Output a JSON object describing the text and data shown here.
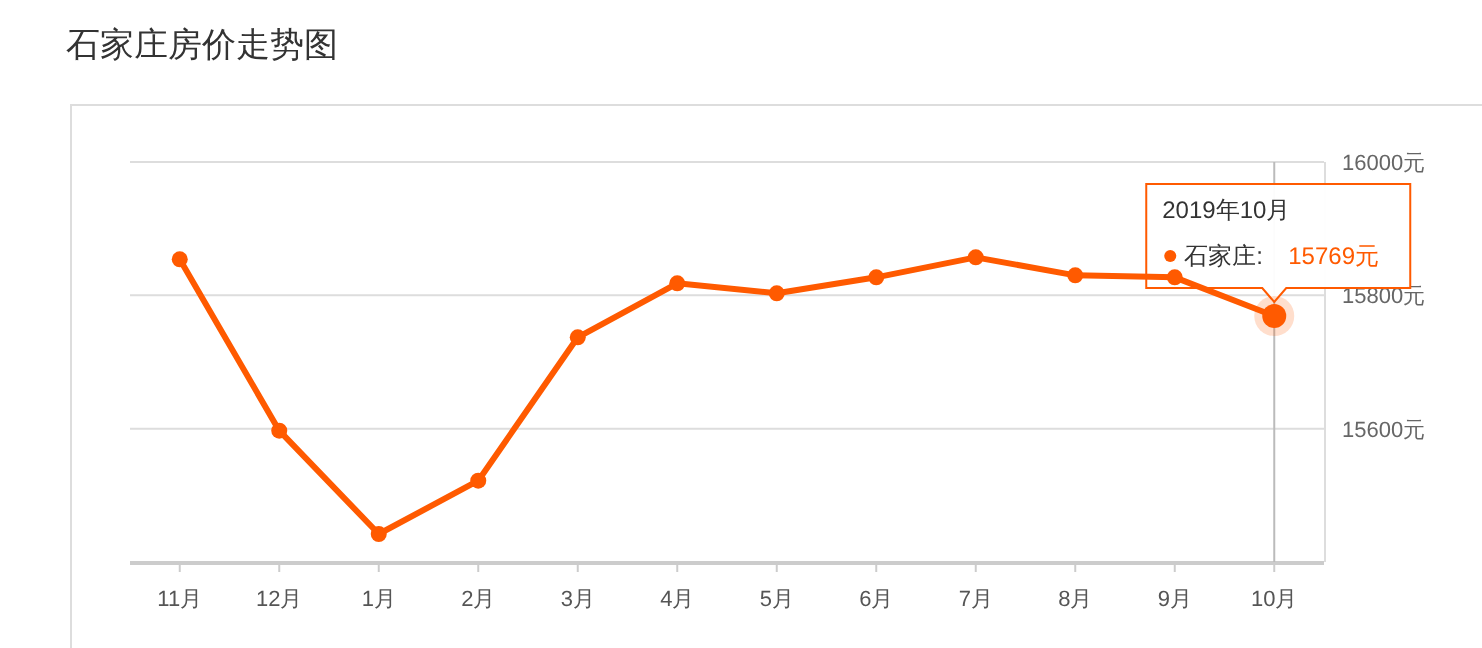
{
  "chart_data": {
    "type": "line",
    "title": "石家庄房价走势图",
    "categories": [
      "11月",
      "12月",
      "1月",
      "2月",
      "3月",
      "4月",
      "5月",
      "6月",
      "7月",
      "8月",
      "9月",
      "10月"
    ],
    "series": [
      {
        "name": "石家庄:",
        "color": "#ff5a00",
        "values": [
          15854,
          15597,
          15442,
          15522,
          15737,
          15818,
          15803,
          15827,
          15857,
          15830,
          15827,
          15769
        ],
        "value_labels": [
          null,
          null,
          null,
          null,
          null,
          null,
          null,
          null,
          null,
          null,
          null,
          "15769元"
        ]
      }
    ],
    "ylim": [
      15400,
      16000
    ],
    "yticks": [
      {
        "value": 15400,
        "label": null
      },
      {
        "value": 15600,
        "label": "15600元"
      },
      {
        "value": 15800,
        "label": "15800元"
      },
      {
        "value": 16000,
        "label": "16000元"
      }
    ],
    "grid": "y",
    "marker": "circle",
    "line_style": "solid",
    "ref_lines": [
      {
        "axis": "x",
        "value": "10月",
        "color": "#bbbbbb"
      }
    ],
    "annotations": [
      "2019年10月"
    ]
  }
}
